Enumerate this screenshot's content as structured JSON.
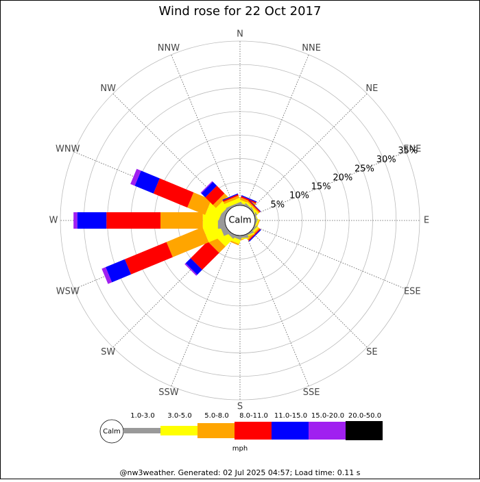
{
  "chart_data": {
    "type": "windrose",
    "title": "Wind rose for 22 Oct 2017",
    "categories": [
      "N",
      "NNE",
      "NE",
      "ENE",
      "E",
      "ESE",
      "SE",
      "SSE",
      "S",
      "SSW",
      "SW",
      "WSW",
      "W",
      "WNW",
      "NW",
      "NNW"
    ],
    "ylim": [
      0,
      35
    ],
    "yticks": [
      {
        "value": 5,
        "label": "5%"
      },
      {
        "value": 10,
        "label": "10%"
      },
      {
        "value": 15,
        "label": "15%"
      },
      {
        "value": 20,
        "label": "20%"
      },
      {
        "value": 25,
        "label": "25%"
      },
      {
        "value": 30,
        "label": "30%"
      },
      {
        "value": 35,
        "label": "35%"
      }
    ],
    "calm_label": "Calm",
    "unit_label": "mph",
    "footer": "@nw3weather. Generated: 02 Jul 2025 04:57; Load time: 0.11 s",
    "series": [
      {
        "name": "1.0-3.0",
        "color": "#999999",
        "values": [
          0.3,
          0.3,
          0.3,
          0.2,
          0.2,
          0.2,
          0.3,
          0.3,
          0.5,
          0.6,
          0.6,
          1.2,
          1.5,
          1.0,
          0.6,
          0.4
        ]
      },
      {
        "name": "3.0-5.0",
        "color": "#ffff00",
        "values": [
          0.5,
          0.6,
          0.4,
          0.2,
          0,
          0.3,
          0.4,
          0.3,
          0.2,
          0.9,
          2.3,
          3.5,
          3.2,
          3.1,
          1.7,
          0.9
        ]
      },
      {
        "name": "5.0-8.0",
        "color": "#ffa500",
        "values": [
          0.3,
          0.5,
          0.3,
          0,
          0,
          0.2,
          0.3,
          0.2,
          0,
          0.3,
          1.9,
          8.3,
          9.0,
          4.1,
          0.9,
          0.5
        ]
      },
      {
        "name": "8.0-11.0",
        "color": "#ff0000",
        "values": [
          0.2,
          0.3,
          0.2,
          0,
          0,
          0,
          0.2,
          0,
          0,
          0,
          5.1,
          9.6,
          11.5,
          7.8,
          2.3,
          0.3
        ]
      },
      {
        "name": "11.0-15.0",
        "color": "#0000ff",
        "values": [
          0,
          0.2,
          0.1,
          0,
          0,
          0,
          0.2,
          0,
          0,
          0,
          1.5,
          4.4,
          6.2,
          4.3,
          1.2,
          0.2
        ]
      },
      {
        "name": "15.0-20.0",
        "color": "#a020f0",
        "values": [
          0,
          0,
          0,
          0,
          0,
          0,
          0,
          0,
          0,
          0,
          0.3,
          0.9,
          0.8,
          1.0,
          0.2,
          0
        ]
      },
      {
        "name": "20.0-50.0",
        "color": "#000000",
        "values": [
          0,
          0,
          0,
          0,
          0,
          0,
          0,
          0,
          0,
          0,
          0,
          0,
          0,
          0,
          0,
          0
        ]
      }
    ]
  }
}
